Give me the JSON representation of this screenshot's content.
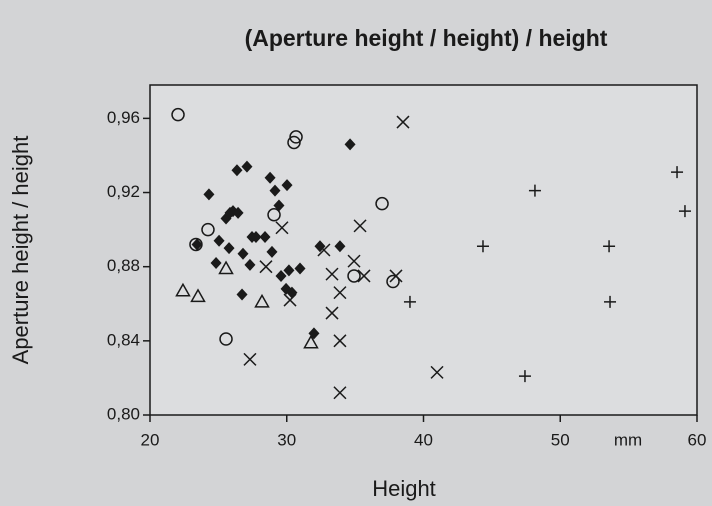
{
  "chart_data": {
    "type": "scatter",
    "title": "(Aperture height / height) / height",
    "x_label": "Height",
    "y_label": "Aperture height / height",
    "x_unit": "mm",
    "xlim": [
      20,
      60
    ],
    "ylim": [
      0.8,
      0.978
    ],
    "xticks": [
      20,
      30,
      40,
      50,
      60
    ],
    "yticks": [
      {
        "value": 0.8,
        "label": "0,80"
      },
      {
        "value": 0.84,
        "label": "0,84"
      },
      {
        "value": 0.88,
        "label": "0,88"
      },
      {
        "value": 0.92,
        "label": "0,92"
      },
      {
        "value": 0.96,
        "label": "0,96"
      }
    ],
    "grid": false,
    "series": [
      {
        "marker": "circle",
        "color": "#1a1a1a",
        "x": [
          22.05,
          23.36,
          24.24,
          25.56,
          29.07,
          30.68,
          30.53,
          34.92,
          36.97,
          37.77
        ],
        "values": [
          0.962,
          0.892,
          0.9,
          0.841,
          0.908,
          0.95,
          0.947,
          0.875,
          0.914,
          0.872
        ]
      },
      {
        "marker": "triangle",
        "color": "#1a1a1a",
        "x": [
          22.41,
          23.51,
          25.56,
          28.19,
          31.77
        ],
        "values": [
          0.867,
          0.864,
          0.879,
          0.861,
          0.839
        ]
      },
      {
        "marker": "diamond",
        "color": "#1a1a1a",
        "x": [
          23.44,
          24.31,
          24.83,
          25.05,
          25.56,
          25.85,
          25.78,
          26.36,
          27.09,
          26.07,
          26.44,
          26.8,
          26.73,
          27.31,
          27.46,
          27.75,
          28.41,
          28.78,
          28.92,
          29.14,
          29.43,
          29.58,
          30.02,
          30.16,
          29.95,
          30.38,
          30.97,
          31.99,
          32.43,
          33.89,
          34.63
        ],
        "values": [
          0.892,
          0.919,
          0.882,
          0.894,
          0.906,
          0.909,
          0.89,
          0.932,
          0.934,
          0.91,
          0.909,
          0.887,
          0.865,
          0.881,
          0.896,
          0.896,
          0.896,
          0.928,
          0.888,
          0.921,
          0.913,
          0.875,
          0.924,
          0.878,
          0.868,
          0.866,
          0.879,
          0.844,
          0.891,
          0.891,
          0.946
        ]
      },
      {
        "marker": "cross",
        "color": "#1a1a1a",
        "x": [
          29.65,
          28.48,
          30.24,
          27.31,
          32.72,
          33.31,
          33.31,
          33.89,
          33.89,
          33.89,
          34.92,
          35.36,
          35.65,
          37.99,
          38.5,
          40.99
        ],
        "values": [
          0.901,
          0.88,
          0.862,
          0.83,
          0.889,
          0.876,
          0.855,
          0.866,
          0.84,
          0.812,
          0.883,
          0.902,
          0.875,
          0.875,
          0.958,
          0.823
        ]
      },
      {
        "marker": "plus",
        "color": "#1a1a1a",
        "x": [
          39.01,
          44.35,
          48.15,
          47.42,
          53.57,
          53.64,
          58.54,
          59.12
        ],
        "values": [
          0.861,
          0.891,
          0.921,
          0.821,
          0.891,
          0.861,
          0.931,
          0.91
        ]
      }
    ]
  }
}
